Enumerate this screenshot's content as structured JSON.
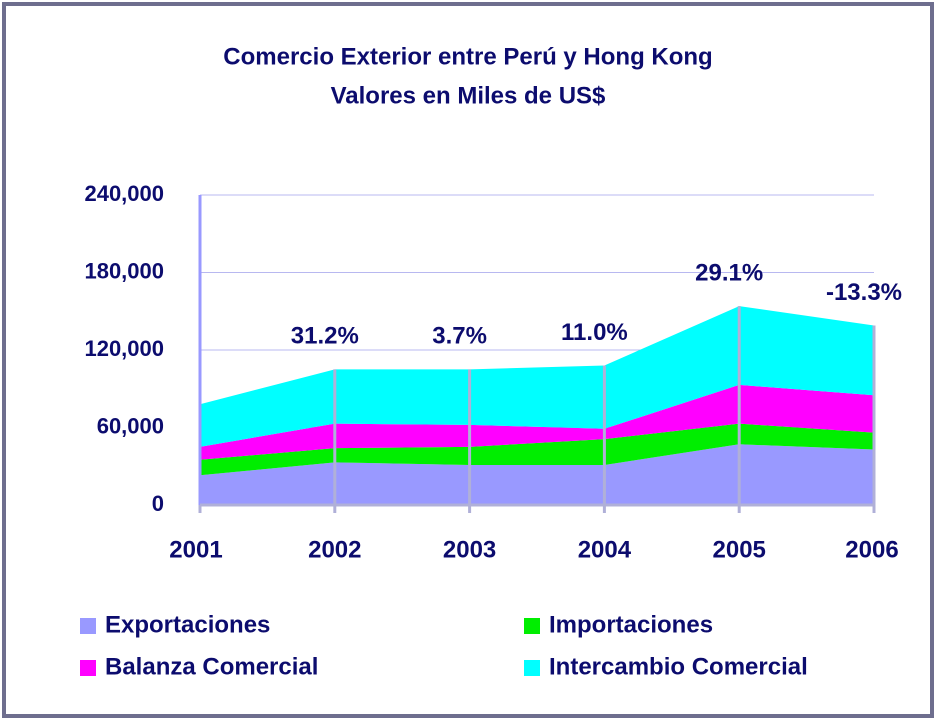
{
  "chart_data": {
    "type": "stacked-area",
    "title": "Comercio Exterior entre Perú y Hong Kong",
    "subtitle": "Valores en Miles de US$",
    "categories": [
      "2001",
      "2002",
      "2003",
      "2004",
      "2005",
      "2006"
    ],
    "series": [
      {
        "name": "Exportaciones",
        "color": "#9999ff",
        "values": [
          23000,
          33000,
          31000,
          31000,
          47000,
          43000
        ]
      },
      {
        "name": "Importaciones",
        "color": "#00ee00",
        "values": [
          12000,
          11000,
          14000,
          20000,
          16000,
          13000
        ]
      },
      {
        "name": "Balanza Comercial",
        "color": "#ff00ff",
        "values": [
          10000,
          19000,
          17000,
          8000,
          30000,
          29000
        ]
      },
      {
        "name": "Intercambio Comercial",
        "color": "#00ffff",
        "values": [
          33000,
          42000,
          43000,
          49000,
          61000,
          54000
        ]
      }
    ],
    "annotations": [
      {
        "text": "31.2%",
        "x": "2002"
      },
      {
        "text": "3.7%",
        "x": "2003"
      },
      {
        "text": "11.0%",
        "x": "2004"
      },
      {
        "text": "29.1%",
        "x": "2005"
      },
      {
        "text": "-13.3%",
        "x": "2006"
      }
    ],
    "ylim": [
      0,
      240000
    ],
    "yticks": [
      0,
      {
        "value": 60000,
        "label": "60,000"
      },
      {
        "value": 120000,
        "label": "120,000"
      },
      {
        "value": 180000,
        "label": "180,000"
      },
      {
        "value": 240000,
        "label": "240,000"
      }
    ],
    "grid": true
  }
}
